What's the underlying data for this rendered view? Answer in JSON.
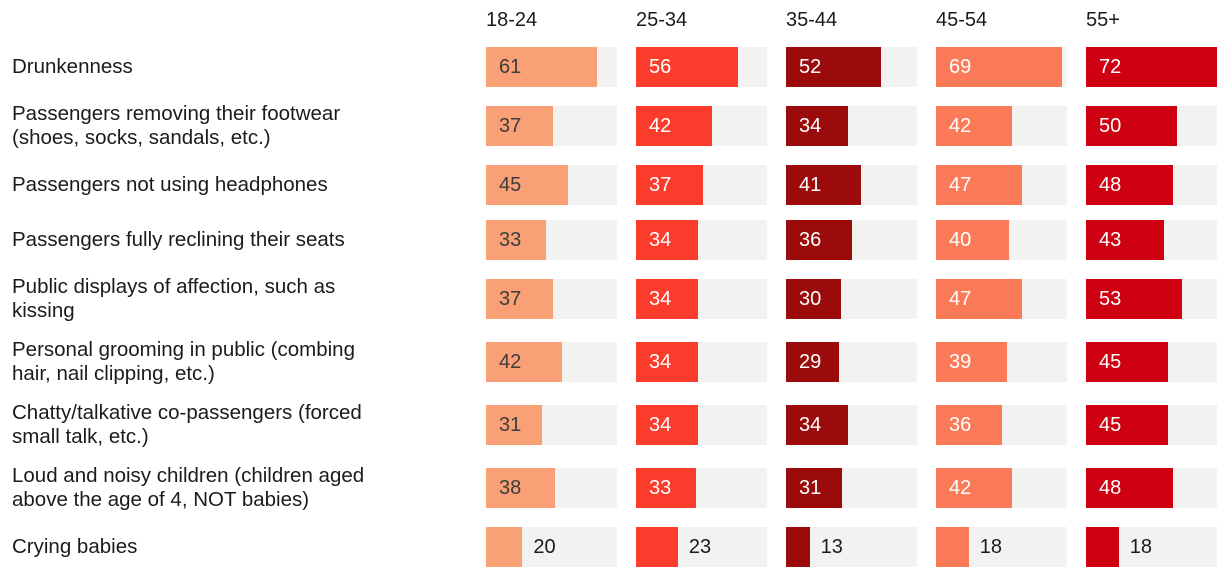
{
  "chart_data": {
    "type": "bar",
    "orientation": "horizontal",
    "title": "",
    "xlabel": "",
    "ylabel": "",
    "xlim": [
      0,
      72
    ],
    "grid": false,
    "legend_position": "none",
    "groups": [
      "18-24",
      "25-34",
      "35-44",
      "45-54",
      "55+"
    ],
    "categories": [
      "Drunkenness",
      "Passengers removing their footwear\n(shoes, socks, sandals, etc.)",
      "Passengers not using headphones",
      "Passengers fully reclining their seats",
      "Public displays of affection, such as\nkissing",
      "Personal grooming in public (combing\nhair, nail clipping, etc.)",
      "Chatty/talkative co-passengers (forced\nsmall talk, etc.)",
      "Loud and noisy children (children aged\nabove the age of 4, NOT babies)",
      "Crying babies"
    ],
    "series": [
      {
        "name": "18-24",
        "values": [
          61,
          37,
          45,
          33,
          37,
          42,
          31,
          38,
          20
        ]
      },
      {
        "name": "25-34",
        "values": [
          56,
          42,
          37,
          34,
          34,
          34,
          34,
          33,
          23
        ]
      },
      {
        "name": "35-44",
        "values": [
          52,
          34,
          41,
          36,
          30,
          29,
          34,
          31,
          13
        ]
      },
      {
        "name": "45-54",
        "values": [
          69,
          42,
          47,
          40,
          47,
          39,
          36,
          42,
          18
        ]
      },
      {
        "name": "55+",
        "values": [
          72,
          50,
          48,
          43,
          53,
          45,
          45,
          48,
          18
        ]
      }
    ]
  },
  "style": {
    "bar_colors": [
      "#F9A077",
      "#FB3B2B",
      "#9C0B0B",
      "#FB7A58",
      "#D00013"
    ],
    "value_text_colors": [
      "#3D3D3D",
      "#FFFFFF",
      "#FFFFFF",
      "#FFFFFF",
      "#FFFFFF"
    ],
    "outside_value_text_color": "#1B1B1B",
    "track_color": "#F2F2F0",
    "label_color": "#1B1B1B",
    "outside_label_threshold": 25
  }
}
